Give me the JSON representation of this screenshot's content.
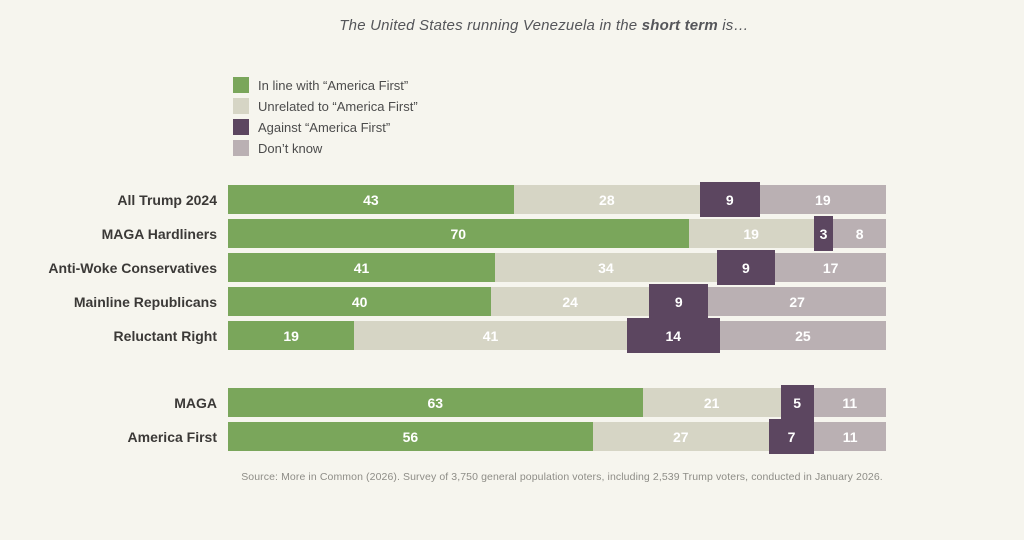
{
  "title": {
    "prefix": "The United States running Venezuela in the ",
    "bold": "short term",
    "suffix": " is…"
  },
  "legend": [
    {
      "key": "in_line",
      "label": "In line with “America First”",
      "color": "#7aa65b"
    },
    {
      "key": "unrelated",
      "label": "Unrelated to “America First”",
      "color": "#d6d5c5"
    },
    {
      "key": "against",
      "label": "Against “America First”",
      "color": "#5c4660"
    },
    {
      "key": "dont_know",
      "label": "Don’t know",
      "color": "#bab0b3"
    }
  ],
  "chart_data": {
    "type": "bar",
    "orientation": "horizontal-stacked",
    "units": "percent",
    "title": "The United States running Venezuela in the short term is…",
    "series_names": [
      "In line with “America First”",
      "Unrelated to “America First”",
      "Against “America First”",
      "Don’t know"
    ],
    "legend_position": "top-left",
    "grid": false,
    "groups": [
      {
        "name": "trump-2024-segments",
        "rows": [
          {
            "label": "All Trump 2024",
            "values": [
              43,
              28,
              9,
              19
            ]
          },
          {
            "label": "MAGA Hardliners",
            "values": [
              70,
              19,
              3,
              8
            ]
          },
          {
            "label": "Anti-Woke Conservatives",
            "values": [
              41,
              34,
              9,
              17
            ]
          },
          {
            "label": "Mainline Republicans",
            "values": [
              40,
              24,
              9,
              27
            ]
          },
          {
            "label": "Reluctant Right",
            "values": [
              19,
              41,
              14,
              25
            ]
          }
        ]
      },
      {
        "name": "maga-america-first",
        "rows": [
          {
            "label": "MAGA",
            "values": [
              63,
              21,
              5,
              11
            ]
          },
          {
            "label": "America First",
            "values": [
              56,
              27,
              7,
              11
            ]
          }
        ]
      }
    ]
  },
  "colors": {
    "background": "#f6f5ee",
    "row_label_text": "#3b3937",
    "segment_value_text": "#ffffff",
    "title_text": "#55565a",
    "source_text": "#8e8d87"
  },
  "source": "Source: More in Common (2026). Survey of 3,750 general population voters, including 2,539 Trump voters, conducted in January 2026."
}
